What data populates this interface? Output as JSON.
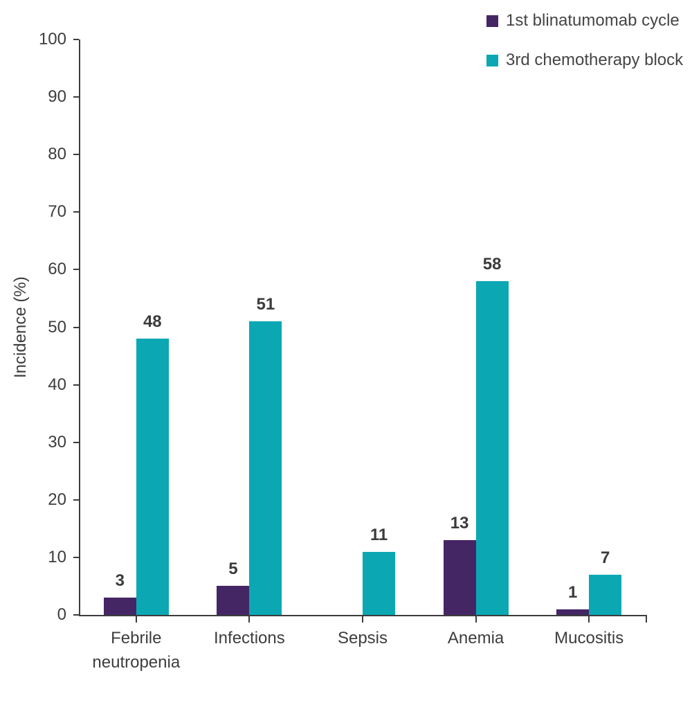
{
  "chart_data": {
    "type": "bar",
    "title": "",
    "xlabel": "",
    "ylabel": "Incidence (%)",
    "ylim": [
      0,
      100
    ],
    "ytick_step": 10,
    "grid": false,
    "legend_position": "top-right",
    "axis_color": "#3C3C3C",
    "text_color": "#3D3D3D",
    "categories": [
      "Febrile neutropenia",
      "Infections",
      "Sepsis",
      "Anemia",
      "Mucositis"
    ],
    "series": [
      {
        "name": "1st blinatumomab cycle",
        "color": "#452665",
        "values": [
          3,
          5,
          null,
          13,
          1
        ]
      },
      {
        "name": "3rd chemotherapy block",
        "color": "#0BA8B4",
        "values": [
          48,
          51,
          11,
          58,
          7
        ]
      }
    ]
  }
}
